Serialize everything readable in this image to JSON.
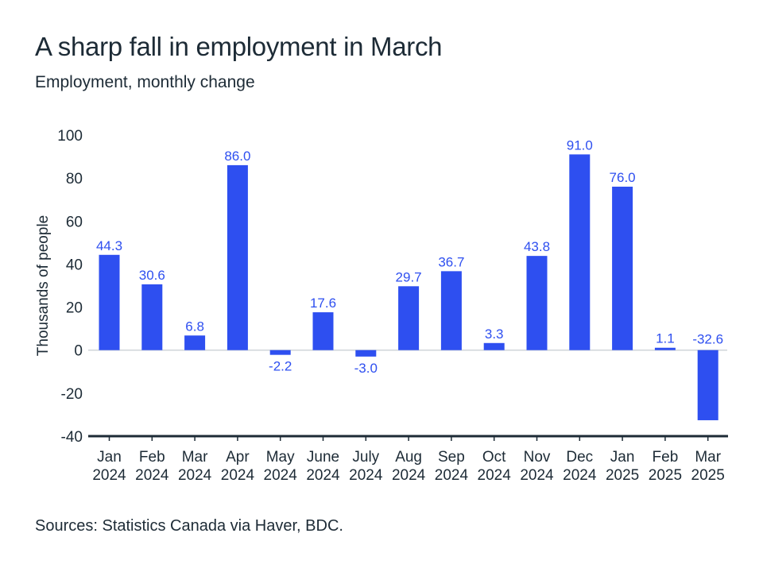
{
  "chart_data": {
    "type": "bar",
    "title": "A sharp fall in employment in March",
    "subtitle": "Employment, monthly change",
    "ylabel": "Thousands of people",
    "xlabel": "",
    "ylim": [
      -40,
      100
    ],
    "yticks": [
      100,
      80,
      60,
      40,
      20,
      0,
      -20,
      -40
    ],
    "categories": [
      [
        "Jan",
        "2024"
      ],
      [
        "Feb",
        "2024"
      ],
      [
        "Mar",
        "2024"
      ],
      [
        "Apr",
        "2024"
      ],
      [
        "May",
        "2024"
      ],
      [
        "June",
        "2024"
      ],
      [
        "July",
        "2024"
      ],
      [
        "Aug",
        "2024"
      ],
      [
        "Sep",
        "2024"
      ],
      [
        "Oct",
        "2024"
      ],
      [
        "Nov",
        "2024"
      ],
      [
        "Dec",
        "2024"
      ],
      [
        "Jan",
        "2025"
      ],
      [
        "Feb",
        "2025"
      ],
      [
        "Mar",
        "2025"
      ]
    ],
    "values": [
      44.3,
      30.6,
      6.8,
      86.0,
      -2.2,
      17.6,
      -3.0,
      29.7,
      36.7,
      3.3,
      43.8,
      91.0,
      76.0,
      1.1,
      -32.6
    ],
    "labels": [
      "44.3",
      "30.6",
      "6.8",
      "86.0",
      "-2.2",
      "17.6",
      "-3.0",
      "29.7",
      "36.7",
      "3.3",
      "43.8",
      "91.0",
      "76.0",
      "1.1",
      "-32.6"
    ],
    "grid": false,
    "bar_color": "#2e4ff0",
    "source": "Sources: Statistics Canada via Haver, BDC."
  }
}
